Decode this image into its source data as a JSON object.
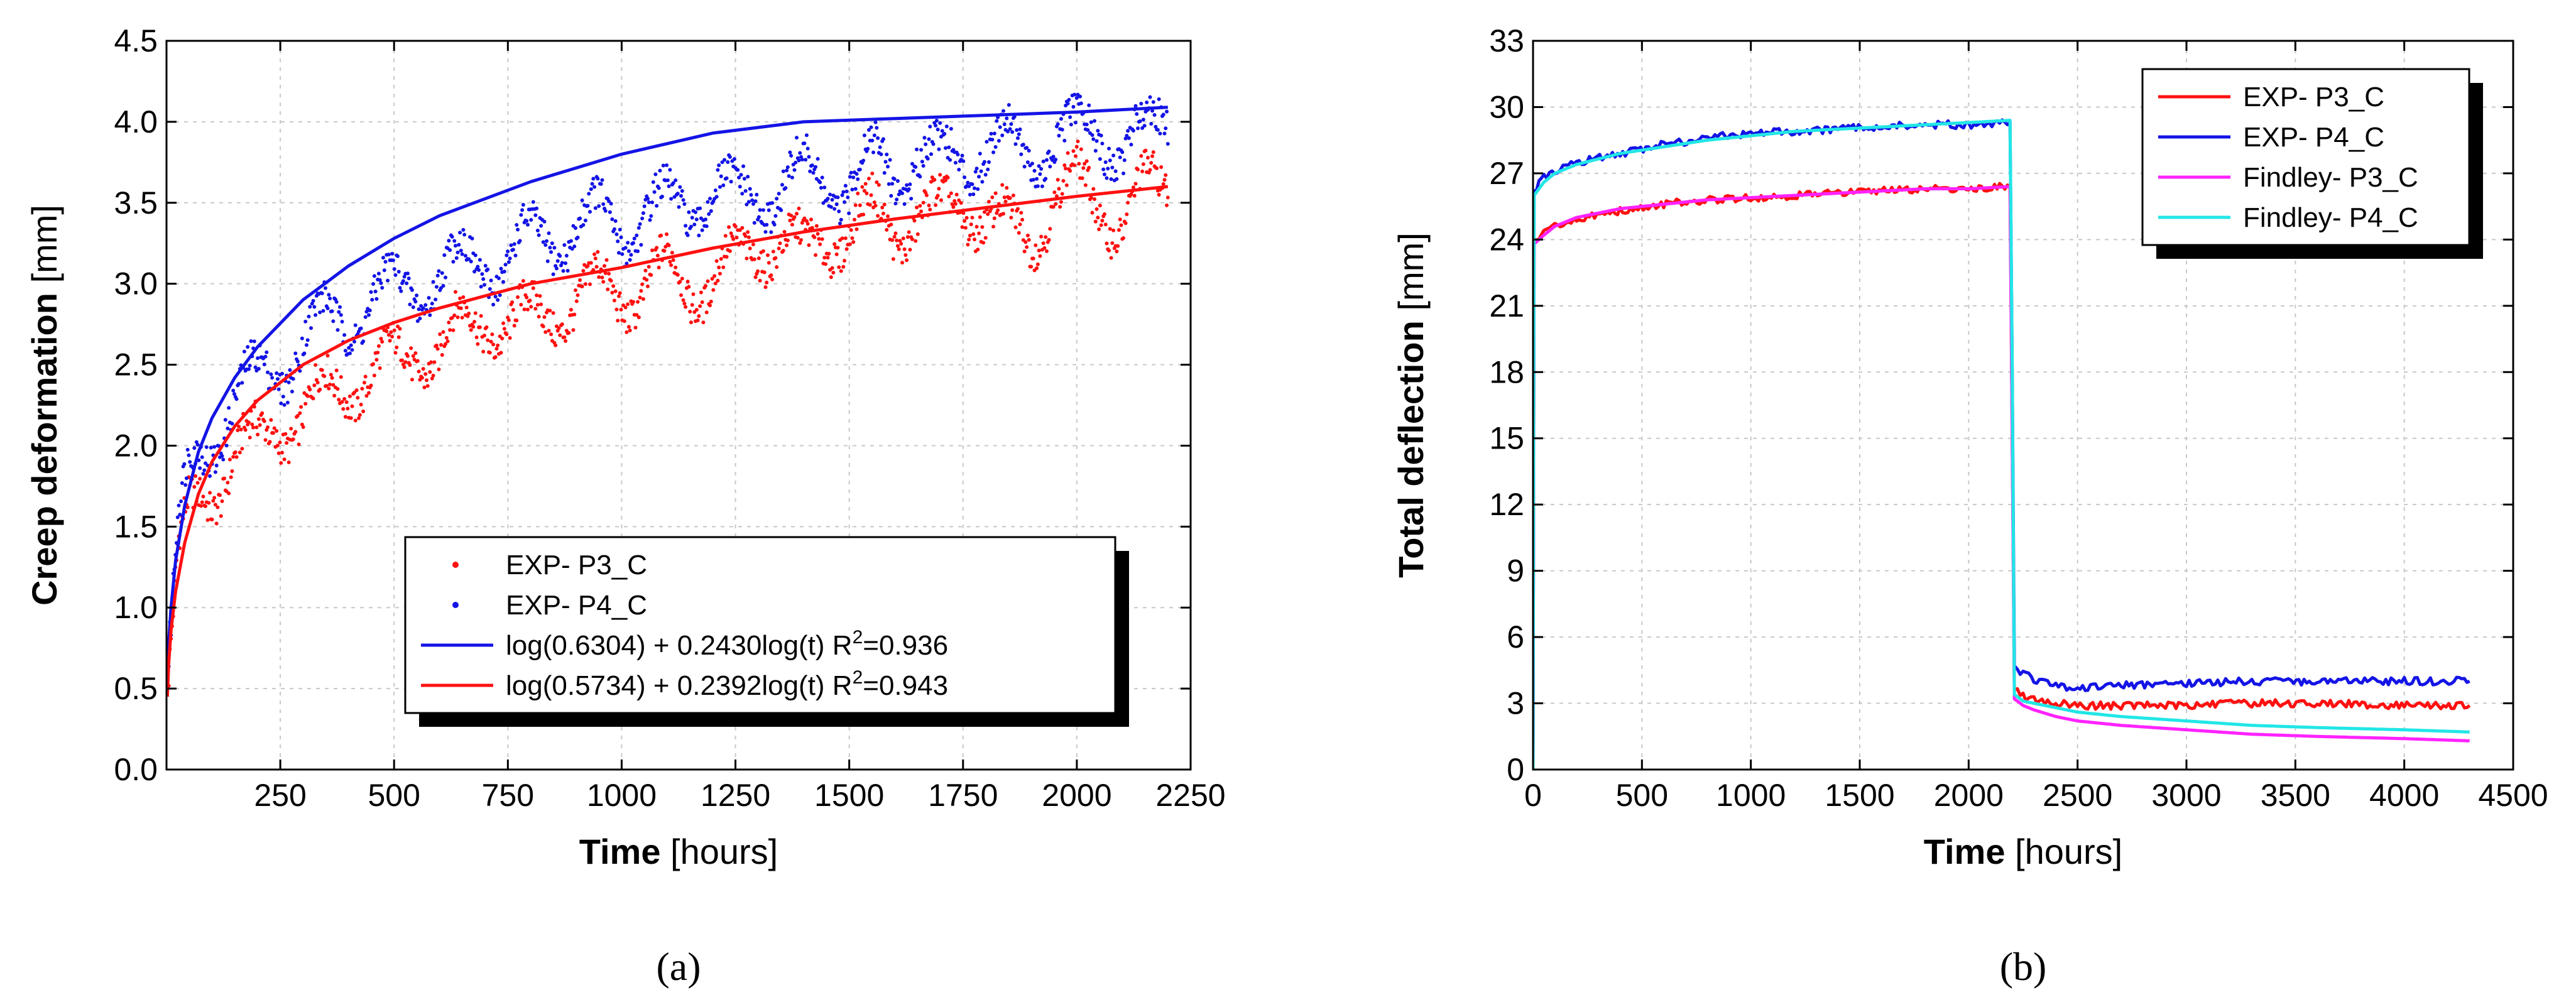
{
  "colors": {
    "red": "#ff1010",
    "blue": "#1414e6",
    "magenta": "#ff22ff",
    "cyan": "#22e6e6",
    "axis": "#000000",
    "grid": "#c8c8c8"
  },
  "chart_data": [
    {
      "panel_label": "(a)",
      "type": "scatter",
      "xlabel_bold": "Time",
      "xlabel_unit": "[hours]",
      "ylabel_bold": "Creep deformation",
      "ylabel_unit": "[mm]",
      "xlim": [
        0,
        2250
      ],
      "ylim": [
        0.0,
        4.5
      ],
      "xticks": [
        "250",
        "500",
        "750",
        "1000",
        "1250",
        "1500",
        "1750",
        "2000",
        "2250"
      ],
      "yticks": [
        "0.0",
        "0.5",
        "1.0",
        "1.5",
        "2.0",
        "2.5",
        "3.0",
        "3.5",
        "4.0",
        "4.5"
      ],
      "grid": true,
      "legend_position": "lower-right",
      "legend": [
        {
          "label": "EXP- P3_C",
          "kind": "points",
          "color": "red"
        },
        {
          "label": "EXP- P4_C",
          "kind": "points",
          "color": "blue"
        },
        {
          "label": "log(0.6304) + 0.2430log(t) R",
          "sup": "2",
          "tail": "=0.936",
          "kind": "line",
          "color": "blue"
        },
        {
          "label": "log(0.5734) + 0.2392log(t) R",
          "sup": "2",
          "tail": "=0.943",
          "kind": "line",
          "color": "red"
        }
      ],
      "series": [
        {
          "name": "EXP- P3_C",
          "kind": "points",
          "color": "red",
          "x": [
            5,
            25,
            50,
            75,
            100,
            150,
            200,
            250,
            300,
            350,
            400,
            450,
            500,
            550,
            600,
            650,
            700,
            750,
            800,
            850,
            900,
            950,
            1000,
            1050,
            1100,
            1150,
            1200,
            1250,
            1300,
            1350,
            1400,
            1450,
            1500,
            1550,
            1600,
            1650,
            1700,
            1750,
            1800,
            1850,
            1900,
            1950,
            2000,
            2050,
            2100,
            2150,
            2200
          ],
          "y": [
            0.55,
            1.25,
            1.55,
            1.7,
            1.75,
            1.95,
            2.0,
            2.15,
            2.2,
            2.3,
            2.4,
            2.45,
            2.5,
            2.6,
            2.6,
            2.7,
            2.8,
            2.75,
            2.75,
            2.85,
            2.9,
            2.95,
            2.95,
            3.0,
            3.05,
            3.0,
            3.05,
            3.1,
            3.25,
            3.3,
            3.15,
            3.3,
            3.35,
            3.4,
            3.35,
            3.45,
            3.4,
            3.5,
            3.45,
            3.3,
            3.3,
            3.55,
            3.6,
            3.5,
            3.4,
            3.55,
            3.65
          ]
        },
        {
          "name": "EXP- P4_C",
          "kind": "points",
          "color": "blue",
          "x": [
            5,
            25,
            50,
            75,
            100,
            150,
            200,
            250,
            300,
            350,
            400,
            450,
            500,
            550,
            600,
            650,
            700,
            750,
            800,
            850,
            900,
            950,
            1000,
            1050,
            1100,
            1150,
            1200,
            1250,
            1300,
            1350,
            1400,
            1450,
            1500,
            1550,
            1600,
            1650,
            1700,
            1750,
            1800,
            1850,
            1900,
            1950,
            2000,
            2050,
            2100,
            2150,
            2200
          ],
          "y": [
            0.65,
            1.45,
            1.8,
            1.95,
            2.05,
            2.3,
            2.4,
            2.5,
            2.65,
            2.75,
            2.8,
            2.9,
            2.95,
            3.0,
            3.05,
            3.1,
            3.15,
            3.15,
            3.25,
            3.3,
            3.35,
            3.4,
            3.35,
            3.45,
            3.45,
            3.5,
            3.6,
            3.5,
            3.55,
            3.6,
            3.65,
            3.65,
            3.6,
            3.75,
            3.7,
            3.8,
            3.75,
            3.8,
            3.85,
            3.85,
            3.8,
            3.9,
            3.9,
            3.95,
            3.85,
            3.9,
            4.05
          ]
        },
        {
          "name": "log(0.6304) + 0.2430log(t) R2=0.936",
          "kind": "line",
          "color": "blue",
          "x": [
            2,
            5,
            10,
            20,
            40,
            70,
            100,
            150,
            200,
            300,
            400,
            500,
            600,
            800,
            1000,
            1200,
            1400,
            1600,
            1800,
            2000,
            2200
          ],
          "y": [
            0.53,
            0.79,
            1.0,
            1.29,
            1.63,
            1.96,
            2.17,
            2.42,
            2.61,
            2.9,
            3.11,
            3.28,
            3.42,
            3.63,
            3.8,
            3.93,
            4.0,
            4.02,
            4.04,
            4.06,
            4.09
          ]
        },
        {
          "name": "log(0.5734) + 0.2392log(t) R2=0.943",
          "kind": "line",
          "color": "red",
          "x": [
            2,
            5,
            10,
            20,
            40,
            70,
            100,
            150,
            200,
            300,
            400,
            500,
            600,
            800,
            1000,
            1200,
            1400,
            1600,
            1800,
            2000,
            2200
          ],
          "y": [
            0.45,
            0.66,
            0.86,
            1.1,
            1.4,
            1.7,
            1.9,
            2.12,
            2.28,
            2.5,
            2.65,
            2.76,
            2.85,
            3.0,
            3.1,
            3.22,
            3.32,
            3.4,
            3.47,
            3.54,
            3.6
          ]
        }
      ]
    },
    {
      "panel_label": "(b)",
      "type": "line",
      "xlabel_bold": "Time",
      "xlabel_unit": "[hours]",
      "ylabel_bold": "Total deflection",
      "ylabel_unit": "[mm]",
      "xlim": [
        0,
        4500
      ],
      "ylim": [
        0,
        33
      ],
      "xticks": [
        "0",
        "500",
        "1000",
        "1500",
        "2000",
        "2500",
        "3000",
        "3500",
        "4000",
        "4500"
      ],
      "yticks": [
        "0",
        "3",
        "6",
        "9",
        "12",
        "15",
        "18",
        "21",
        "24",
        "27",
        "30",
        "33"
      ],
      "grid": true,
      "legend_position": "top-right",
      "legend": [
        {
          "label": "EXP- P3_C",
          "color": "red"
        },
        {
          "label": "EXP- P4_C",
          "color": "blue"
        },
        {
          "label": "Findley- P3_C",
          "color": "magenta"
        },
        {
          "label": "Findley- P4_C",
          "color": "cyan"
        }
      ],
      "series": [
        {
          "name": "EXP- P3_C",
          "color": "red",
          "x": [
            0,
            5,
            50,
            100,
            200,
            400,
            600,
            800,
            1000,
            1200,
            1400,
            1600,
            1800,
            2000,
            2190,
            2200,
            2210,
            2250,
            2300,
            2400,
            2500,
            2700,
            3000,
            3300,
            3600,
            4000,
            4300
          ],
          "y": [
            0,
            23.9,
            24.3,
            24.6,
            24.9,
            25.3,
            25.6,
            25.8,
            25.9,
            26.0,
            26.1,
            26.2,
            26.3,
            26.3,
            26.4,
            15.0,
            3.6,
            3.3,
            3.2,
            3.0,
            2.9,
            2.9,
            2.9,
            3.0,
            3.0,
            2.9,
            2.9
          ]
        },
        {
          "name": "EXP- P4_C",
          "color": "blue",
          "x": [
            0,
            5,
            50,
            100,
            200,
            400,
            600,
            800,
            1000,
            1200,
            1400,
            1600,
            1800,
            2000,
            2190,
            2200,
            2210,
            2250,
            2300,
            2400,
            2500,
            2700,
            3000,
            3300,
            3600,
            4000,
            4300
          ],
          "y": [
            0,
            26.2,
            26.8,
            27.1,
            27.5,
            27.9,
            28.3,
            28.6,
            28.8,
            28.9,
            29.0,
            29.1,
            29.2,
            29.2,
            29.3,
            18.0,
            4.7,
            4.3,
            4.1,
            3.8,
            3.7,
            3.8,
            3.9,
            4.0,
            4.0,
            4.0,
            4.0
          ]
        },
        {
          "name": "Findley- P3_C",
          "color": "magenta",
          "x": [
            0,
            5,
            50,
            100,
            200,
            400,
            600,
            800,
            1000,
            1200,
            1400,
            1600,
            1800,
            2000,
            2190,
            2200,
            2210,
            2250,
            2300,
            2400,
            2500,
            2700,
            3000,
            3300,
            3600,
            4000,
            4300
          ],
          "y": [
            0,
            23.8,
            24.2,
            24.6,
            25.0,
            25.4,
            25.6,
            25.8,
            25.9,
            26.0,
            26.1,
            26.2,
            26.3,
            26.3,
            26.4,
            15.0,
            3.2,
            2.9,
            2.7,
            2.4,
            2.2,
            2.0,
            1.8,
            1.6,
            1.5,
            1.4,
            1.3
          ]
        },
        {
          "name": "Findley- P4_C",
          "color": "cyan",
          "x": [
            0,
            5,
            50,
            100,
            200,
            400,
            600,
            800,
            1000,
            1200,
            1400,
            1600,
            1800,
            2000,
            2190,
            2200,
            2210,
            2250,
            2300,
            2400,
            2500,
            2700,
            3000,
            3300,
            3600,
            4000,
            4300
          ],
          "y": [
            0,
            26.0,
            26.6,
            27.0,
            27.4,
            27.9,
            28.2,
            28.5,
            28.7,
            28.9,
            29.0,
            29.1,
            29.2,
            29.3,
            29.4,
            18.0,
            3.4,
            3.1,
            3.0,
            2.8,
            2.6,
            2.4,
            2.2,
            2.0,
            1.9,
            1.8,
            1.7
          ]
        }
      ]
    }
  ]
}
